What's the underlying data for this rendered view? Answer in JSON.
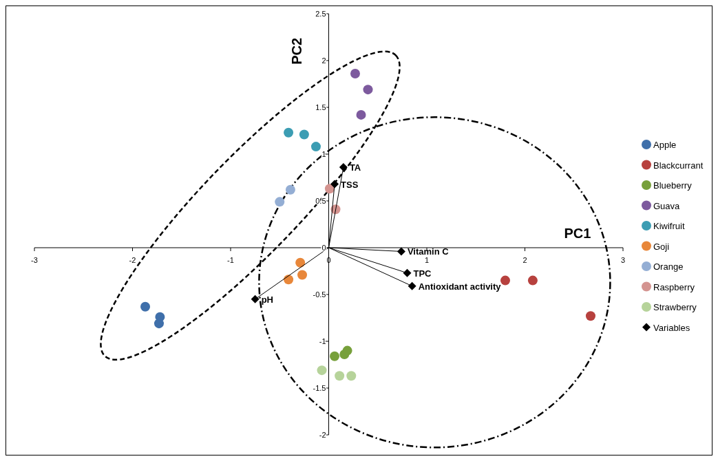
{
  "chart_data": {
    "type": "scatter",
    "xlabel": "PC1",
    "ylabel": "PC2",
    "xlim": [
      -3,
      3
    ],
    "ylim": [
      -2,
      2.5
    ],
    "xticks": [
      -3,
      -2,
      -1,
      0,
      1,
      2,
      3
    ],
    "yticks": [
      -2,
      -1.5,
      -1,
      -0.5,
      0,
      0.5,
      1,
      1.5,
      2,
      2.5
    ],
    "legend": "right",
    "grid": false,
    "marker": "circle",
    "series": [
      {
        "name": "Apple",
        "color": "#3f6faa",
        "x": [
          -1.87,
          -1.72,
          -1.73
        ],
        "values": [
          -0.63,
          -0.74,
          -0.81
        ]
      },
      {
        "name": "Blackcurrant",
        "color": "#b7413e",
        "x": [
          1.8,
          2.08,
          2.67
        ],
        "values": [
          -0.35,
          -0.35,
          -0.73
        ]
      },
      {
        "name": "Blueberry",
        "color": "#77a03b",
        "x": [
          0.06,
          0.16,
          0.19
        ],
        "values": [
          -1.16,
          -1.14,
          -1.1
        ]
      },
      {
        "name": "Guava",
        "color": "#7d5a9e",
        "x": [
          0.27,
          0.4,
          0.33
        ],
        "values": [
          1.86,
          1.69,
          1.42
        ]
      },
      {
        "name": "Kiwifruit",
        "color": "#3c9db3",
        "x": [
          -0.41,
          -0.25,
          -0.13
        ],
        "values": [
          1.23,
          1.21,
          1.08
        ]
      },
      {
        "name": "Goji",
        "color": "#e8873a",
        "x": [
          -0.29,
          -0.27,
          -0.41
        ],
        "values": [
          -0.16,
          -0.29,
          -0.34
        ]
      },
      {
        "name": "Orange",
        "color": "#94aed4",
        "x": [
          -0.39,
          -0.5
        ],
        "values": [
          0.62,
          0.49
        ]
      },
      {
        "name": "Raspberry",
        "color": "#d49490",
        "x": [
          0.01,
          0.07
        ],
        "values": [
          0.63,
          0.41
        ]
      },
      {
        "name": "Strawberry",
        "color": "#b6d39a",
        "x": [
          -0.07,
          0.11,
          0.23
        ],
        "values": [
          -1.31,
          -1.37,
          -1.37
        ]
      },
      {
        "name": "Variables",
        "color": "#000000",
        "marker": "diamond",
        "x": [
          0.15,
          0.06,
          0.74,
          0.8,
          0.85,
          -0.75
        ],
        "values": [
          0.86,
          0.68,
          -0.04,
          -0.27,
          -0.41,
          -0.55
        ]
      }
    ],
    "annotations": [
      {
        "text": "TA",
        "x": 0.15,
        "y": 0.86
      },
      {
        "text": "TSS",
        "x": 0.06,
        "y": 0.68
      },
      {
        "text": "Vitamin C",
        "x": 0.74,
        "y": -0.04
      },
      {
        "text": "TPC",
        "x": 0.8,
        "y": -0.27
      },
      {
        "text": "Antioxidant activity",
        "x": 0.85,
        "y": -0.41
      },
      {
        "text": "pH",
        "x": -0.75,
        "y": -0.55
      }
    ]
  }
}
